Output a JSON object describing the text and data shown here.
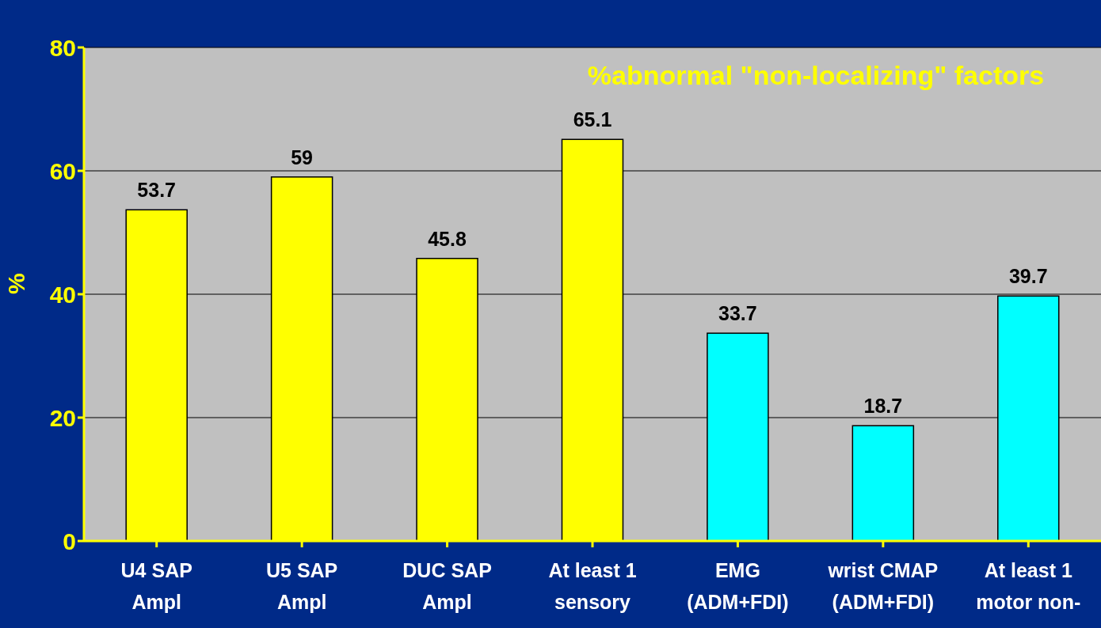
{
  "chart_data": {
    "type": "bar",
    "title": "%abnormal \"non-localizing\" factors",
    "ylabel": "%",
    "categories": [
      "U4 SAP\nAmpl",
      "U5 SAP\nAmpl",
      "DUC SAP\nAmpl",
      "At least 1\nsensory",
      "EMG\n(ADM+FDI)",
      "wrist CMAP\n(ADM+FDI)",
      "At least 1\nmotor non-"
    ],
    "values": [
      53.7,
      59,
      45.8,
      65.1,
      33.7,
      18.7,
      39.7
    ],
    "colors": [
      "#ffff00",
      "#ffff00",
      "#ffff00",
      "#ffff00",
      "#00ffff",
      "#00ffff",
      "#00ffff"
    ],
    "ylim": [
      0,
      80
    ],
    "yticks": [
      0,
      20,
      40,
      60,
      80
    ],
    "grid": "y",
    "data_labels": true
  }
}
